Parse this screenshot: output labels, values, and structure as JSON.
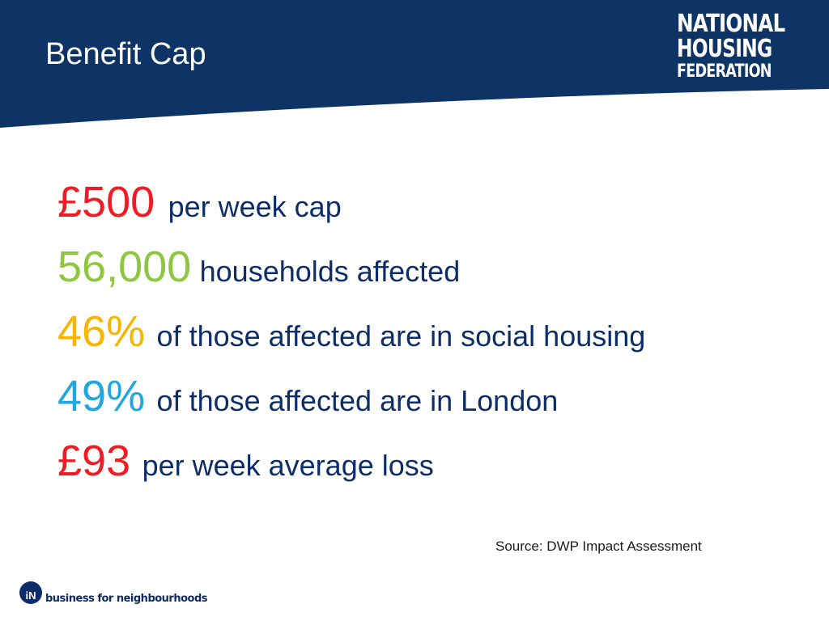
{
  "header": {
    "title": "Benefit Cap",
    "logo": {
      "line1": "NATIONAL",
      "line2": "HOUSING",
      "line3": "FEDERATION"
    }
  },
  "stats": [
    {
      "value": "£500",
      "text": "per week cap",
      "color": "#ee1c24"
    },
    {
      "value": "56,000",
      "text": "households affected",
      "color": "#8dc63f"
    },
    {
      "value": "46%",
      "text": "of those affected are in social housing",
      "color": "#f7b500"
    },
    {
      "value": "49%",
      "text": "of those affected are in London",
      "color": "#1ea7e1"
    },
    {
      "value": "£93",
      "text": "per week average loss",
      "color": "#ee1c24"
    }
  ],
  "source": "Source: DWP Impact Assessment",
  "footer": {
    "icon_text": "iN",
    "tagline": "business for neighbourhoods"
  },
  "colors": {
    "navy": "#0d2d69",
    "text": "#0d2d69"
  }
}
